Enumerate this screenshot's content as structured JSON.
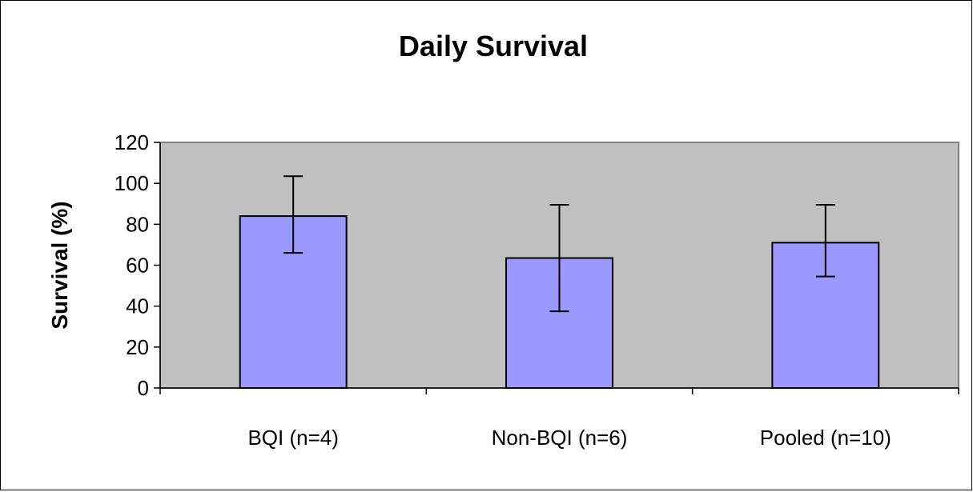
{
  "chart_data": {
    "type": "bar",
    "title": "Daily Survival",
    "xlabel": "",
    "ylabel": "Survival (%)",
    "ylim": [
      0,
      120
    ],
    "yticks": [
      0,
      20,
      40,
      60,
      80,
      100,
      120
    ],
    "grid": false,
    "legend": "none",
    "categories": [
      "BQI (n=4)",
      "Non-BQI (n=6)",
      "Pooled (n=10)"
    ],
    "values": [
      84,
      63.5,
      71
    ],
    "error_low": [
      66,
      37.5,
      54.5
    ],
    "error_high": [
      103.5,
      89.5,
      89.5
    ],
    "colors": {
      "bar_fill": "#9999ff",
      "plot_background": "#c0c0c0",
      "axis": "#000000",
      "frame": "#000000"
    }
  }
}
